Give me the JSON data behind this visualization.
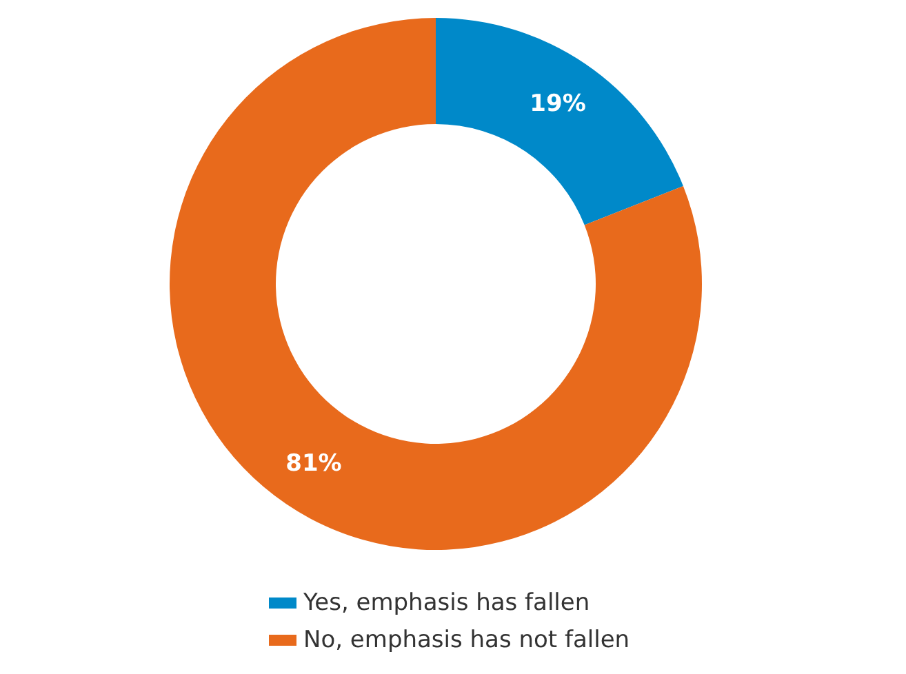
{
  "chart_data": {
    "type": "donut",
    "categories": [
      "Yes, emphasis has fallen",
      "No, emphasis has not fallen"
    ],
    "values": [
      19,
      81
    ],
    "colors": [
      "#0089c9",
      "#e86a1c"
    ],
    "value_labels": [
      "19%",
      "81%"
    ],
    "legend": "bottom"
  }
}
